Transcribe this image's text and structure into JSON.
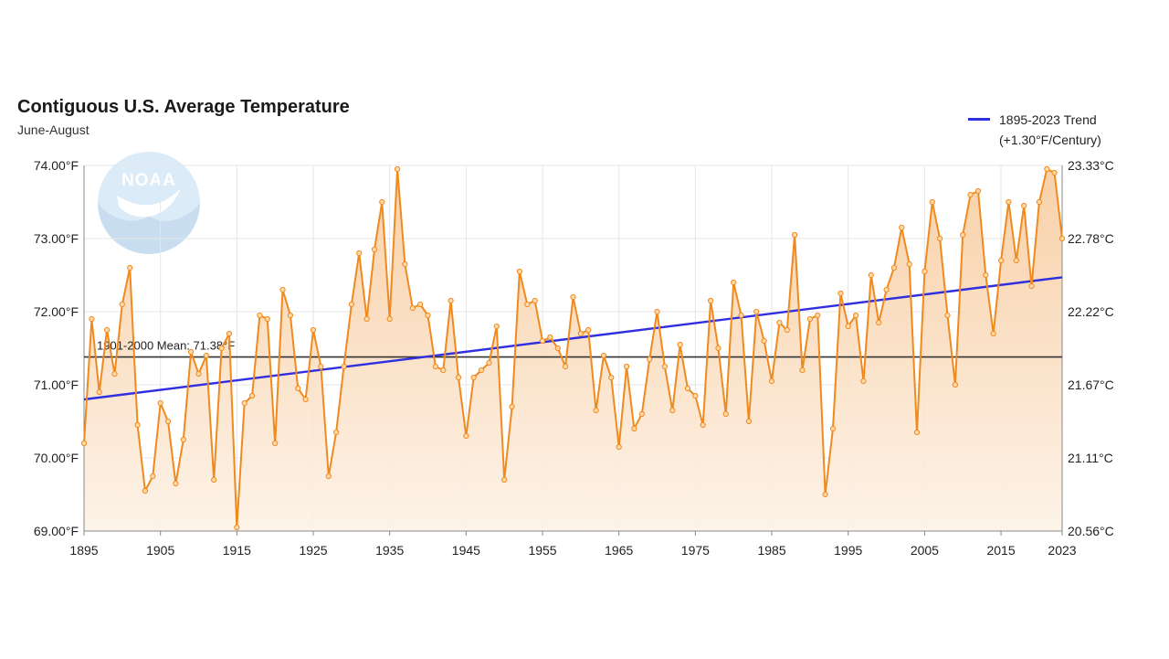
{
  "title": "Contiguous U.S. Average Temperature",
  "subtitle": "June-August",
  "legend": {
    "label_line1": "1895-2023 Trend",
    "label_line2": "(+1.30°F/Century)",
    "color": "#2f2fe0"
  },
  "logo": {
    "text": "NOAA",
    "icon": "noaa-logo-icon"
  },
  "colors": {
    "series": "#f08a1e",
    "fill_top": "#f7c99a",
    "fill_bottom": "#fdf2e6",
    "trend": "#2f2fe0",
    "mean": "#333333",
    "grid": "#e6e6e6"
  },
  "chart_data": {
    "type": "line",
    "title": "Contiguous U.S. Average Temperature",
    "subtitle": "June-August",
    "xlim": [
      1895,
      2023
    ],
    "ylim": [
      69,
      74
    ],
    "x_ticks": [
      "1895",
      "1905",
      "1915",
      "1925",
      "1935",
      "1945",
      "1955",
      "1965",
      "1975",
      "1985",
      "1995",
      "2005",
      "2015",
      "2023"
    ],
    "y_ticks_left": [
      "69.00°F",
      "70.00°F",
      "71.00°F",
      "72.00°F",
      "73.00°F",
      "74.00°F"
    ],
    "y_ticks_right": [
      "20.56°C",
      "21.11°C",
      "21.67°C",
      "22.22°C",
      "22.78°C",
      "23.33°C"
    ],
    "grid": true,
    "legend_position": "top-right",
    "mean": {
      "label": "1901-2000 Mean: 71.38°F",
      "value": 71.38
    },
    "trend": {
      "name": "1895-2023 Trend (+1.30°F/Century)",
      "start": [
        1895,
        70.8
      ],
      "end": [
        2023,
        72.47
      ]
    },
    "series": [
      {
        "x": [
          1895,
          1896,
          1897,
          1898,
          1899,
          1900,
          1901,
          1902,
          1903,
          1904,
          1905,
          1906,
          1907,
          1908,
          1909,
          1910,
          1911,
          1912,
          1913,
          1914,
          1915,
          1916,
          1917,
          1918,
          1919,
          1920,
          1921,
          1922,
          1923,
          1924,
          1925,
          1926,
          1927,
          1928,
          1929,
          1930,
          1931,
          1932,
          1933,
          1934,
          1935,
          1936,
          1937,
          1938,
          1939,
          1940,
          1941,
          1942,
          1943,
          1944,
          1945,
          1946,
          1947,
          1948,
          1949,
          1950,
          1951,
          1952,
          1953,
          1954,
          1955,
          1956,
          1957,
          1958,
          1959,
          1960,
          1961,
          1962,
          1963,
          1964,
          1965,
          1966,
          1967,
          1968,
          1969,
          1970,
          1971,
          1972,
          1973,
          1974,
          1975,
          1976,
          1977,
          1978,
          1979,
          1980,
          1981,
          1982,
          1983,
          1984,
          1985,
          1986,
          1987,
          1988,
          1989,
          1990,
          1991,
          1992,
          1993,
          1994,
          1995,
          1996,
          1997,
          1998,
          1999,
          2000,
          2001,
          2002,
          2003,
          2004,
          2005,
          2006,
          2007,
          2008,
          2009,
          2010,
          2011,
          2012,
          2013,
          2014,
          2015,
          2016,
          2017,
          2018,
          2019,
          2020,
          2021,
          2022,
          2023
        ],
        "values": [
          70.2,
          71.9,
          70.9,
          71.75,
          71.15,
          72.1,
          72.6,
          70.45,
          69.55,
          69.75,
          70.75,
          70.5,
          69.65,
          70.25,
          71.45,
          71.15,
          71.4,
          69.7,
          71.5,
          71.7,
          69.05,
          70.75,
          70.85,
          71.95,
          71.9,
          70.2,
          72.3,
          71.95,
          70.95,
          70.8,
          71.75,
          71.25,
          69.75,
          70.35,
          71.25,
          72.1,
          72.8,
          71.9,
          72.85,
          73.5,
          71.9,
          73.95,
          72.65,
          72.05,
          72.1,
          71.95,
          71.25,
          71.2,
          72.15,
          71.1,
          70.3,
          71.1,
          71.2,
          71.3,
          71.8,
          69.7,
          70.7,
          72.55,
          72.1,
          72.15,
          71.6,
          71.65,
          71.5,
          71.25,
          72.2,
          71.7,
          71.75,
          70.65,
          71.4,
          71.1,
          70.15,
          71.25,
          70.4,
          70.6,
          71.35,
          72.0,
          71.25,
          70.65,
          71.55,
          70.95,
          70.85,
          70.45,
          72.15,
          71.5,
          70.6,
          72.4,
          71.95,
          70.5,
          72.0,
          71.6,
          71.05,
          71.85,
          71.75,
          73.05,
          71.2,
          71.9,
          71.95,
          69.5,
          70.4,
          72.25,
          71.8,
          71.95,
          71.05,
          72.5,
          71.85,
          72.3,
          72.6,
          73.15,
          72.65,
          70.35,
          72.55,
          73.5,
          73.0,
          71.95,
          71.0,
          73.05,
          73.6,
          73.65,
          72.5,
          71.7,
          72.7,
          73.5,
          72.7,
          73.45,
          72.35,
          73.5,
          73.95,
          73.9,
          73.0
        ]
      }
    ]
  }
}
